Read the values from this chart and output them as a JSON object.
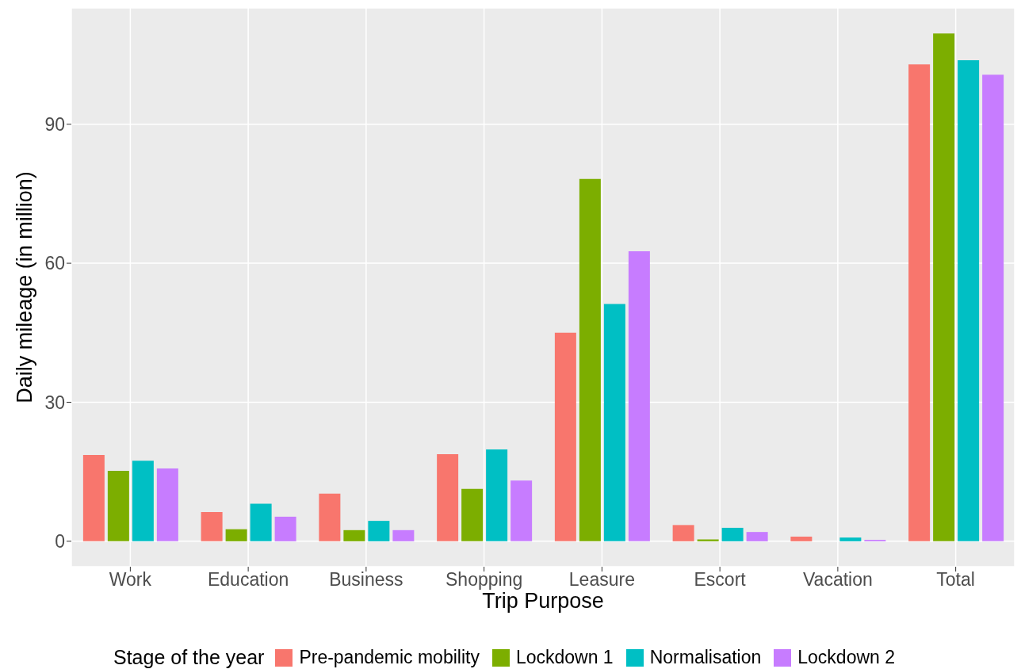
{
  "chart_data": {
    "type": "bar",
    "xlabel": "Trip Purpose",
    "ylabel": "Daily mileage (in million)",
    "legend_title": "Stage of the year",
    "categories": [
      "Work",
      "Education",
      "Business",
      "Shopping",
      "Leasure",
      "Escort",
      "Vacation",
      "Total"
    ],
    "series": [
      {
        "name": "Pre-pandemic mobility",
        "color": "#f8766d",
        "values": [
          18.6,
          6.3,
          10.3,
          18.8,
          45.0,
          3.5,
          1.0,
          102.9
        ]
      },
      {
        "name": "Lockdown 1",
        "color": "#7cae00",
        "values": [
          15.2,
          2.6,
          2.4,
          11.3,
          78.2,
          0.4,
          null,
          109.6
        ]
      },
      {
        "name": "Normalisation",
        "color": "#00bfc4",
        "values": [
          17.4,
          8.1,
          4.4,
          19.8,
          51.2,
          2.9,
          0.8,
          103.8
        ]
      },
      {
        "name": "Lockdown 2",
        "color": "#c77cff",
        "values": [
          15.7,
          5.3,
          2.4,
          13.1,
          62.6,
          2.0,
          0.3,
          100.7
        ]
      }
    ],
    "ylim": [
      -5.5,
      115.1
    ],
    "yticks": [
      0,
      30,
      60,
      90
    ],
    "grid": true,
    "legend": "bottom"
  }
}
